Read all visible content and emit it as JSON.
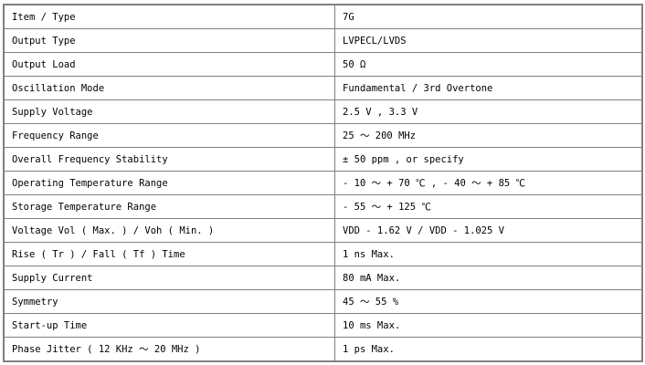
{
  "rows": [
    {
      "label": "Item / Type",
      "value": "7G"
    },
    {
      "label": "Output Type",
      "value": "LVPECL/LVDS"
    },
    {
      "label": "Output Load",
      "value": "50 Ω"
    },
    {
      "label": "Oscillation Mode",
      "value": "Fundamental / 3rd Overtone"
    },
    {
      "label": "Supply Voltage",
      "value": "2.5 V , 3.3 V"
    },
    {
      "label": "Frequency Range",
      "value": "25 ～ 200 MHz"
    },
    {
      "label": "Overall Frequency Stability",
      "value": "± 50 ppm , or specify"
    },
    {
      "label": "Operating Temperature Range",
      "value": "- 10 ～ + 70 ℃ , - 40 ～ + 85 ℃"
    },
    {
      "label": "Storage Temperature Range",
      "value": "- 55 ～ + 125 ℃"
    },
    {
      "label": "Voltage Vol ( Max. ) / Voh ( Min. )",
      "value": "VDD - 1.62 V / VDD - 1.025 V"
    },
    {
      "label": "Rise ( Tr ) / Fall ( Tf ) Time",
      "value": "1 ns Max."
    },
    {
      "label": "Supply Current",
      "value": "80 mA Max."
    },
    {
      "label": "Symmetry",
      "value": "45 ～ 55 %"
    },
    {
      "label": "Start-up Time",
      "value": "10 ms Max."
    },
    {
      "label": "Phase Jitter ( 12 KHz ～ 20 MHz )",
      "value": "1 ps Max."
    }
  ]
}
